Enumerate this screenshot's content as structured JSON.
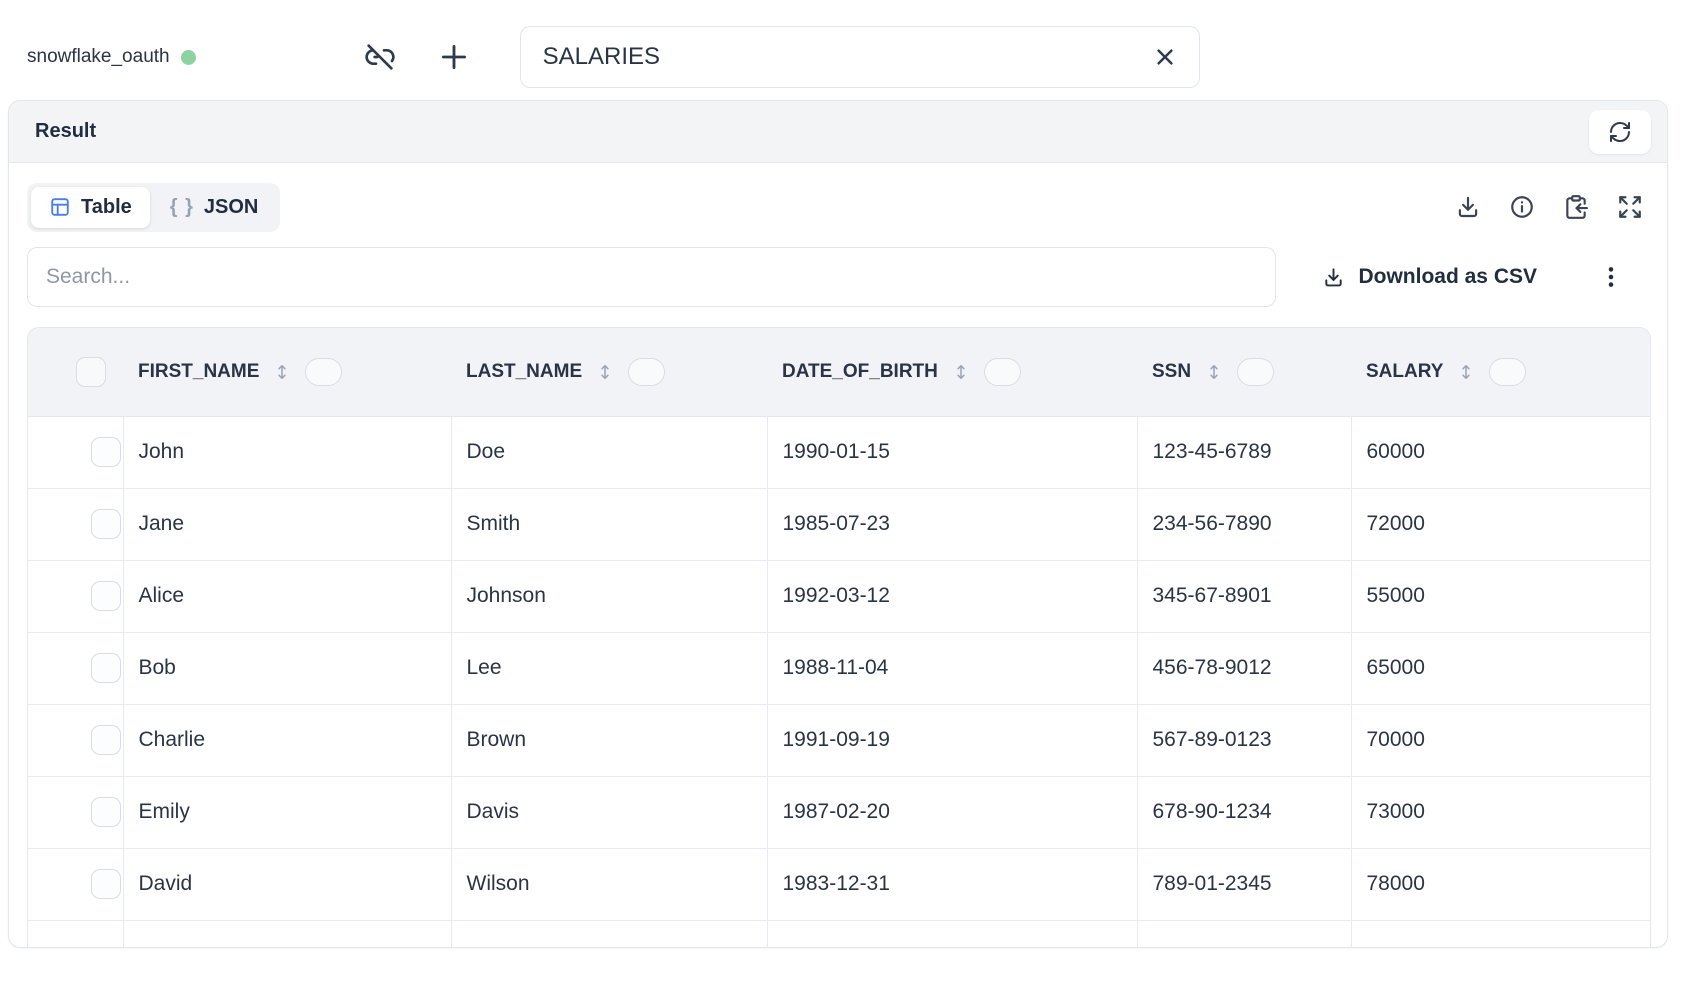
{
  "topbar": {
    "connection_name": "snowflake_oauth",
    "connection_status_color": "#8fd2a2",
    "table_selector": {
      "value": "SALARIES"
    }
  },
  "result_panel": {
    "title": "Result",
    "tabs": {
      "table_label": "Table",
      "json_label": "JSON",
      "json_braces": "{ }"
    },
    "search": {
      "placeholder": "Search..."
    },
    "download_csv_label": "Download as CSV"
  },
  "table": {
    "columns": [
      "FIRST_NAME",
      "LAST_NAME",
      "DATE_OF_BIRTH",
      "SSN",
      "SALARY"
    ],
    "rows": [
      [
        "John",
        "Doe",
        "1990-01-15",
        "123-45-6789",
        "60000"
      ],
      [
        "Jane",
        "Smith",
        "1985-07-23",
        "234-56-7890",
        "72000"
      ],
      [
        "Alice",
        "Johnson",
        "1992-03-12",
        "345-67-8901",
        "55000"
      ],
      [
        "Bob",
        "Lee",
        "1988-11-04",
        "456-78-9012",
        "65000"
      ],
      [
        "Charlie",
        "Brown",
        "1991-09-19",
        "567-89-0123",
        "70000"
      ],
      [
        "Emily",
        "Davis",
        "1987-02-20",
        "678-90-1234",
        "73000"
      ],
      [
        "David",
        "Wilson",
        "1983-12-31",
        "789-01-2345",
        "78000"
      ]
    ]
  },
  "colors": {
    "accent_blue": "#4a7bf7",
    "status_green": "#8fd2a2",
    "text_dark": "#2a3445",
    "panel_gray": "#f1f3f6"
  }
}
